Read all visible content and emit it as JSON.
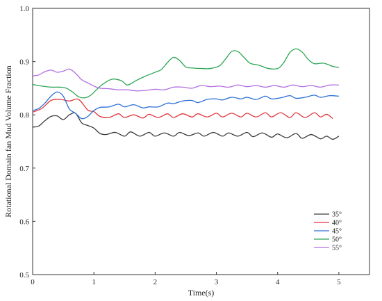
{
  "chart_data": {
    "type": "line",
    "title": "",
    "xlabel": "Time(s)",
    "ylabel": "Rotational Domain fan Mud Volume Fraction",
    "xlim": [
      0,
      5.5
    ],
    "ylim": [
      0.5,
      1.0
    ],
    "x_ticks": [
      0,
      1,
      2,
      3,
      4,
      5
    ],
    "x_tick_labels": [
      "0",
      "1",
      "2",
      "3",
      "4",
      "5"
    ],
    "y_ticks": [
      0.5,
      0.6,
      0.7,
      0.8,
      0.9,
      1.0
    ],
    "y_tick_labels": [
      "0.5",
      "0.6",
      "0.7",
      "0.8",
      "0.9",
      "1.0"
    ],
    "grid": false,
    "legend_position": "bottom-right",
    "series": [
      {
        "name": "35°",
        "color": "#3a3a3a",
        "x": [
          0.0,
          0.1,
          0.2,
          0.3,
          0.4,
          0.5,
          0.6,
          0.7,
          0.8,
          0.9,
          1.0,
          1.1,
          1.2,
          1.35,
          1.5,
          1.6,
          1.75,
          1.9,
          2.0,
          2.15,
          2.3,
          2.4,
          2.55,
          2.7,
          2.8,
          2.95,
          3.1,
          3.2,
          3.35,
          3.5,
          3.6,
          3.75,
          3.9,
          4.0,
          4.15,
          4.3,
          4.4,
          4.55,
          4.7,
          4.8,
          4.9,
          5.0
        ],
        "values": [
          0.777,
          0.779,
          0.789,
          0.797,
          0.798,
          0.791,
          0.8,
          0.803,
          0.785,
          0.78,
          0.775,
          0.765,
          0.763,
          0.767,
          0.76,
          0.768,
          0.76,
          0.767,
          0.76,
          0.766,
          0.76,
          0.767,
          0.761,
          0.766,
          0.76,
          0.767,
          0.76,
          0.766,
          0.76,
          0.767,
          0.759,
          0.766,
          0.758,
          0.764,
          0.757,
          0.765,
          0.756,
          0.763,
          0.755,
          0.76,
          0.754,
          0.76
        ]
      },
      {
        "name": "40°",
        "color": "#e0363c",
        "x": [
          0.0,
          0.15,
          0.3,
          0.45,
          0.6,
          0.75,
          0.9,
          1.0,
          1.1,
          1.25,
          1.4,
          1.5,
          1.65,
          1.8,
          1.9,
          2.05,
          2.2,
          2.3,
          2.45,
          2.6,
          2.7,
          2.85,
          3.0,
          3.1,
          3.25,
          3.4,
          3.5,
          3.65,
          3.8,
          3.9,
          4.05,
          4.2,
          4.3,
          4.45,
          4.6,
          4.7,
          4.8,
          4.9
        ],
        "values": [
          0.805,
          0.812,
          0.827,
          0.829,
          0.826,
          0.829,
          0.809,
          0.806,
          0.797,
          0.795,
          0.802,
          0.795,
          0.8,
          0.794,
          0.801,
          0.795,
          0.802,
          0.795,
          0.802,
          0.796,
          0.802,
          0.796,
          0.803,
          0.796,
          0.803,
          0.796,
          0.803,
          0.796,
          0.804,
          0.796,
          0.804,
          0.795,
          0.804,
          0.795,
          0.804,
          0.796,
          0.801,
          0.793
        ]
      },
      {
        "name": "45°",
        "color": "#2a6fd6",
        "x": [
          0.0,
          0.1,
          0.2,
          0.3,
          0.4,
          0.5,
          0.6,
          0.7,
          0.8,
          0.9,
          1.0,
          1.1,
          1.25,
          1.4,
          1.5,
          1.65,
          1.8,
          1.9,
          2.05,
          2.2,
          2.3,
          2.45,
          2.6,
          2.7,
          2.85,
          3.0,
          3.1,
          3.25,
          3.4,
          3.5,
          3.65,
          3.8,
          3.9,
          4.05,
          4.2,
          4.3,
          4.45,
          4.6,
          4.7,
          4.85,
          5.0
        ],
        "values": [
          0.808,
          0.812,
          0.822,
          0.835,
          0.843,
          0.835,
          0.811,
          0.803,
          0.793,
          0.797,
          0.808,
          0.814,
          0.815,
          0.82,
          0.815,
          0.819,
          0.813,
          0.815,
          0.815,
          0.822,
          0.821,
          0.826,
          0.827,
          0.823,
          0.829,
          0.83,
          0.828,
          0.833,
          0.83,
          0.833,
          0.829,
          0.835,
          0.83,
          0.832,
          0.836,
          0.831,
          0.833,
          0.837,
          0.833,
          0.836,
          0.835
        ]
      },
      {
        "name": "50°",
        "color": "#2aa552",
        "x": [
          0.0,
          0.15,
          0.3,
          0.45,
          0.55,
          0.65,
          0.75,
          0.85,
          0.95,
          1.05,
          1.15,
          1.3,
          1.45,
          1.55,
          1.7,
          1.85,
          2.0,
          2.1,
          2.2,
          2.3,
          2.4,
          2.5,
          2.6,
          2.75,
          2.9,
          3.05,
          3.15,
          3.25,
          3.35,
          3.45,
          3.55,
          3.7,
          3.85,
          4.0,
          4.1,
          4.2,
          4.3,
          4.4,
          4.5,
          4.6,
          4.75,
          4.9,
          5.0
        ],
        "values": [
          0.857,
          0.854,
          0.852,
          0.852,
          0.85,
          0.843,
          0.834,
          0.832,
          0.837,
          0.848,
          0.858,
          0.867,
          0.864,
          0.856,
          0.865,
          0.873,
          0.88,
          0.885,
          0.898,
          0.908,
          0.902,
          0.89,
          0.888,
          0.887,
          0.887,
          0.892,
          0.905,
          0.919,
          0.919,
          0.908,
          0.897,
          0.893,
          0.887,
          0.887,
          0.898,
          0.917,
          0.924,
          0.918,
          0.904,
          0.896,
          0.897,
          0.891,
          0.889
        ]
      },
      {
        "name": "55°",
        "color": "#b26ee2",
        "x": [
          0.0,
          0.1,
          0.2,
          0.3,
          0.4,
          0.5,
          0.6,
          0.7,
          0.8,
          0.9,
          1.0,
          1.1,
          1.25,
          1.4,
          1.55,
          1.7,
          1.85,
          2.0,
          2.15,
          2.3,
          2.45,
          2.6,
          2.75,
          2.9,
          3.05,
          3.2,
          3.35,
          3.5,
          3.65,
          3.8,
          3.95,
          4.1,
          4.25,
          4.4,
          4.55,
          4.7,
          4.85,
          5.0
        ],
        "values": [
          0.873,
          0.875,
          0.881,
          0.884,
          0.88,
          0.882,
          0.886,
          0.878,
          0.866,
          0.86,
          0.854,
          0.85,
          0.849,
          0.847,
          0.847,
          0.845,
          0.846,
          0.848,
          0.847,
          0.852,
          0.852,
          0.85,
          0.855,
          0.853,
          0.854,
          0.852,
          0.856,
          0.853,
          0.855,
          0.852,
          0.855,
          0.852,
          0.856,
          0.853,
          0.855,
          0.852,
          0.856,
          0.856
        ]
      }
    ]
  }
}
